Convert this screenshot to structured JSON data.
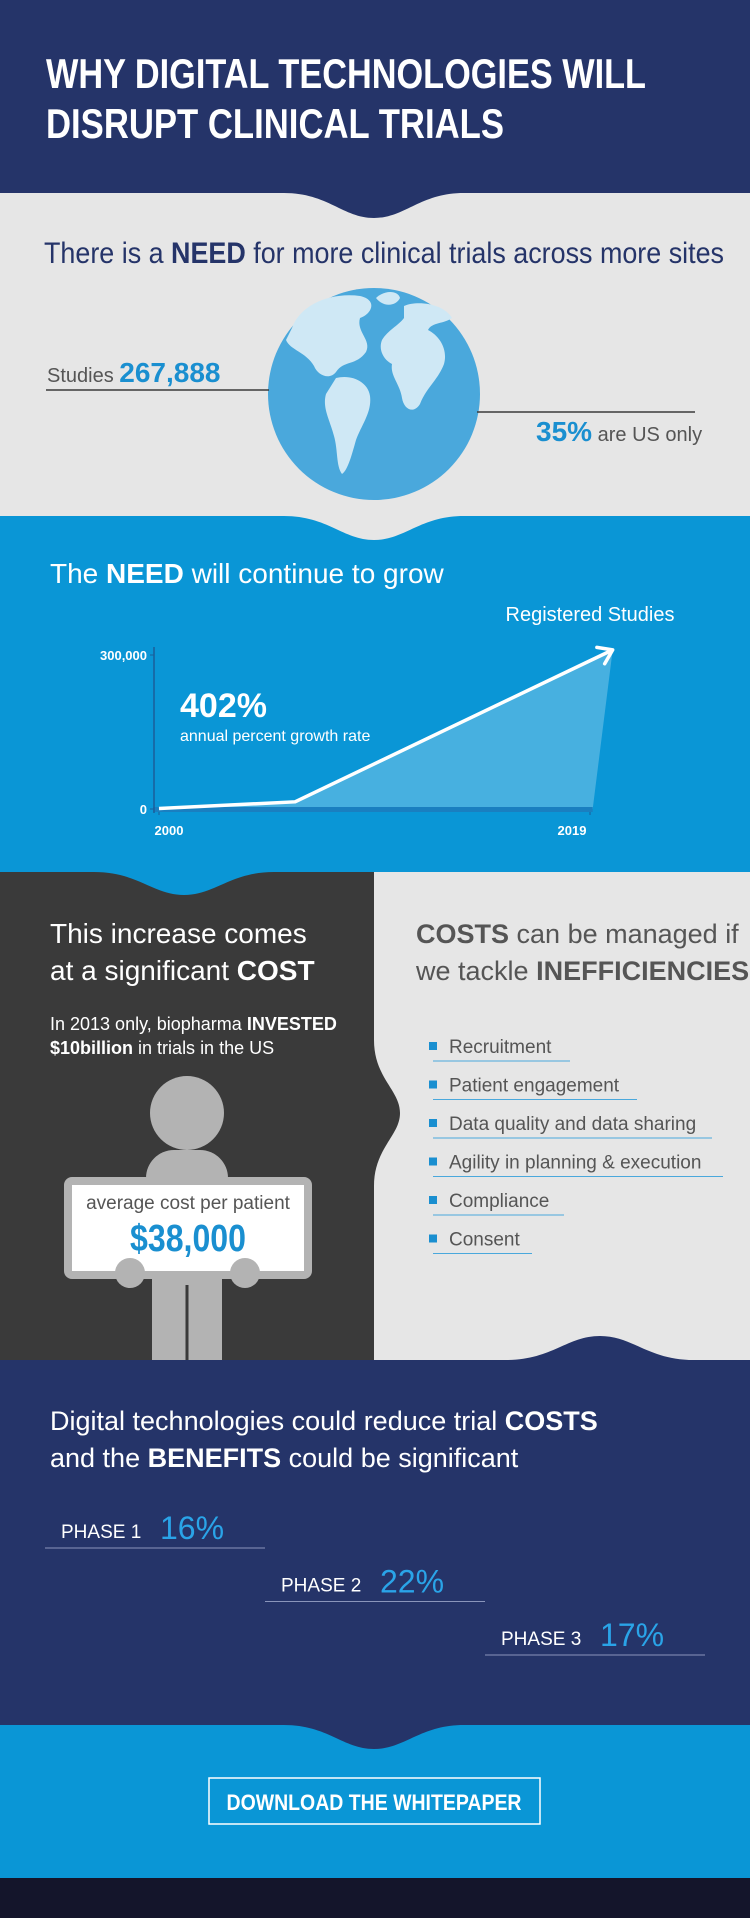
{
  "header": {
    "title_lines": [
      "WHY DIGITAL TECHNOLOGIES WILL",
      "DISRUPT CLINICAL TRIALS"
    ]
  },
  "need_section": {
    "heading": [
      "There is a",
      "NEED",
      "for more clinical trials across more sites"
    ],
    "studies_label": "Studies",
    "studies_value": "267,888",
    "us_value": "35%",
    "us_label": "are US only"
  },
  "growth_section": {
    "heading": [
      "The",
      "NEED",
      "will continue to grow"
    ],
    "chart": {
      "type": "area",
      "title": "Registered Studies",
      "annotation_value": "402%",
      "annotation_label": "annual percent growth rate",
      "x": [
        2000,
        2006,
        2020
      ],
      "values": [
        1000,
        14000,
        310000
      ],
      "xlim": [
        2000,
        2019
      ],
      "xticks": [
        2000,
        2019
      ],
      "ylim": [
        0,
        300000
      ],
      "yticks": [
        0,
        {
          "value": 300000,
          "label": "300,000"
        }
      ],
      "color": "#ffffff"
    }
  },
  "cost_section": {
    "heading_lines": [
      [
        "This increase comes"
      ],
      [
        "at a significant",
        "COST"
      ]
    ],
    "spend_lines": [
      [
        "In 2013 only, biopharma",
        "INVESTED"
      ],
      [
        "$10billion",
        "in trials in the US"
      ]
    ],
    "sign_label": "average cost per patient",
    "sign_value": "$38,000"
  },
  "inefficiency_section": {
    "heading_lines": [
      [
        "COSTS",
        "can be managed if"
      ],
      [
        "we tackle",
        "INEFFICIENCIES"
      ]
    ],
    "items": [
      "Recruitment",
      "Patient engagement",
      "Data quality and data sharing",
      "Agility in planning & execution",
      "Compliance",
      "Consent"
    ]
  },
  "benefits_section": {
    "heading_lines": [
      [
        "Digital technologies could reduce trial",
        "COSTS"
      ],
      [
        "and the",
        "BENEFITS",
        "could be significant"
      ]
    ],
    "phases": [
      {
        "label": "PHASE 1",
        "value": "16%"
      },
      {
        "label": "PHASE 2",
        "value": "22%"
      },
      {
        "label": "PHASE 3",
        "value": "17%"
      }
    ]
  },
  "footer": {
    "button": "DOWNLOAD THE WHITEPAPER"
  }
}
